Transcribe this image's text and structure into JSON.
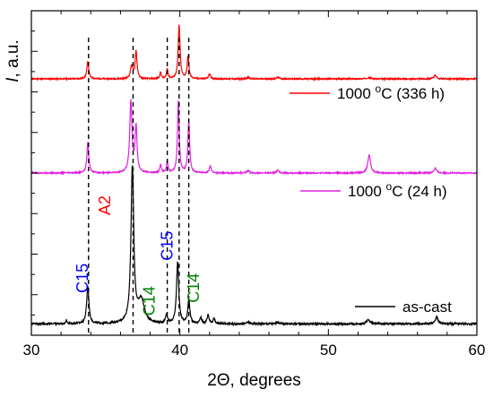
{
  "chart_data": {
    "type": "line",
    "xlabel": "2Θ, degrees",
    "ylabel_italic": "I",
    "ylabel_rest": ", a.u.",
    "xlim": [
      30,
      60
    ],
    "xticks": [
      30,
      40,
      50,
      60
    ],
    "x_minor_step": 2,
    "y_tick_count": 16,
    "grid": false,
    "series": [
      {
        "name": "1000 °C (336 h)",
        "label_main": "1000 ",
        "label_sup": "o",
        "label_tail": "C (336 h)",
        "color": "#ff0000",
        "baseline": 0.79,
        "noise": 0.002,
        "peaks": [
          {
            "x": 33.8,
            "h": 0.055,
            "w": 0.15
          },
          {
            "x": 36.75,
            "h": 0.04,
            "w": 0.18
          },
          {
            "x": 37.05,
            "h": 0.085,
            "w": 0.15
          },
          {
            "x": 38.7,
            "h": 0.02,
            "w": 0.12
          },
          {
            "x": 39.15,
            "h": 0.03,
            "w": 0.12
          },
          {
            "x": 39.95,
            "h": 0.165,
            "w": 0.15
          },
          {
            "x": 40.55,
            "h": 0.07,
            "w": 0.14
          },
          {
            "x": 42.0,
            "h": 0.015,
            "w": 0.15
          },
          {
            "x": 44.6,
            "h": 0.004,
            "w": 0.2
          },
          {
            "x": 46.6,
            "h": 0.005,
            "w": 0.2
          },
          {
            "x": 52.7,
            "h": 0.004,
            "w": 0.3
          },
          {
            "x": 57.2,
            "h": 0.012,
            "w": 0.2
          }
        ]
      },
      {
        "name": "1000 °C (24 h)",
        "label_main": "1000 ",
        "label_sup": "o",
        "label_tail": "C (24 h)",
        "color": "#e020e0",
        "baseline": 0.5,
        "noise": 0.002,
        "peaks": [
          {
            "x": 33.8,
            "h": 0.095,
            "w": 0.15
          },
          {
            "x": 36.7,
            "h": 0.22,
            "w": 0.18
          },
          {
            "x": 37.05,
            "h": 0.14,
            "w": 0.16
          },
          {
            "x": 38.7,
            "h": 0.025,
            "w": 0.12
          },
          {
            "x": 39.15,
            "h": 0.035,
            "w": 0.12
          },
          {
            "x": 39.9,
            "h": 0.22,
            "w": 0.14
          },
          {
            "x": 40.6,
            "h": 0.16,
            "w": 0.14
          },
          {
            "x": 42.05,
            "h": 0.02,
            "w": 0.15
          },
          {
            "x": 44.6,
            "h": 0.007,
            "w": 0.2
          },
          {
            "x": 46.6,
            "h": 0.008,
            "w": 0.2
          },
          {
            "x": 52.75,
            "h": 0.055,
            "w": 0.22
          },
          {
            "x": 57.2,
            "h": 0.015,
            "w": 0.2
          }
        ]
      },
      {
        "name": "as-cast",
        "label_main": "as-cast",
        "label_sup": "",
        "label_tail": "",
        "color": "#000000",
        "baseline": 0.035,
        "noise": 0.003,
        "peaks": [
          {
            "x": 32.35,
            "h": 0.01,
            "w": 0.12
          },
          {
            "x": 33.8,
            "h": 0.115,
            "w": 0.18
          },
          {
            "x": 36.8,
            "h": 0.48,
            "w": 0.22
          },
          {
            "x": 37.4,
            "h": 0.07,
            "w": 0.5
          },
          {
            "x": 39.1,
            "h": 0.025,
            "w": 0.15
          },
          {
            "x": 39.85,
            "h": 0.19,
            "w": 0.18
          },
          {
            "x": 40.6,
            "h": 0.075,
            "w": 0.16
          },
          {
            "x": 41.4,
            "h": 0.02,
            "w": 0.15
          },
          {
            "x": 41.9,
            "h": 0.025,
            "w": 0.15
          },
          {
            "x": 42.3,
            "h": 0.015,
            "w": 0.15
          },
          {
            "x": 44.6,
            "h": 0.005,
            "w": 0.2
          },
          {
            "x": 46.6,
            "h": 0.006,
            "w": 0.2
          },
          {
            "x": 52.7,
            "h": 0.012,
            "w": 0.3
          },
          {
            "x": 57.3,
            "h": 0.02,
            "w": 0.25
          }
        ]
      }
    ],
    "reference_lines": [
      33.85,
      36.85,
      39.15,
      39.95,
      40.6
    ],
    "annotations": [
      {
        "text": "C15",
        "x": 33.8,
        "y": 0.13,
        "color": "#0000ff",
        "rotate": -90
      },
      {
        "text": "A2",
        "x": 35.3,
        "y": 0.37,
        "color": "#ff0000",
        "rotate": -90
      },
      {
        "text": "C14",
        "x": 38.3,
        "y": 0.06,
        "color": "#008000",
        "rotate": -90
      },
      {
        "text": "C15",
        "x": 39.5,
        "y": 0.23,
        "color": "#0000ff",
        "rotate": -90
      },
      {
        "text": "C14",
        "x": 41.3,
        "y": 0.1,
        "color": "#008000",
        "rotate": -90
      }
    ]
  }
}
